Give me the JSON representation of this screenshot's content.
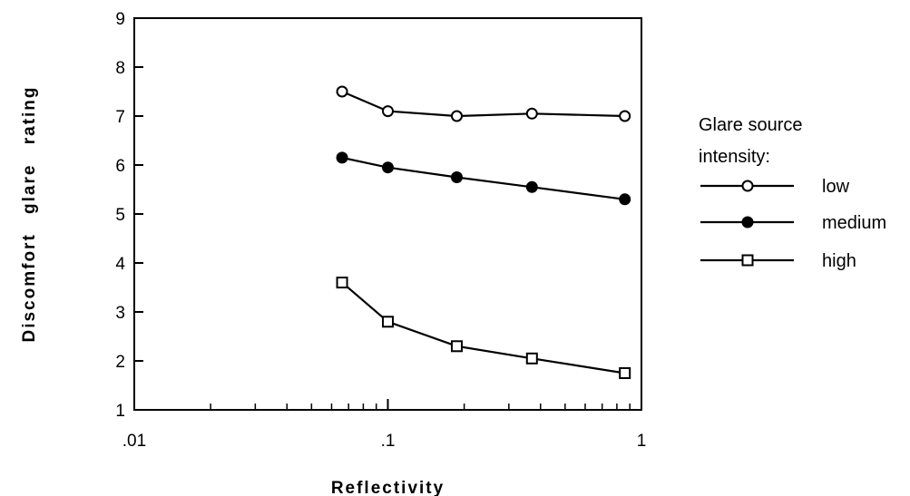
{
  "chart_data": {
    "type": "line",
    "xlabel": "Reflectivity",
    "ylabel": "Discomfort glare rating",
    "x_scale": "log",
    "xlim": [
      0.01,
      1
    ],
    "ylim": [
      1,
      9
    ],
    "x_ticks": [
      ".01",
      ".1",
      "1"
    ],
    "y_ticks": [
      "1",
      "2",
      "3",
      "4",
      "5",
      "6",
      "7",
      "8",
      "9"
    ],
    "legend_title": "Glare source intensity:",
    "legend_position": "right",
    "grid": false,
    "x": [
      0.066,
      0.1,
      0.187,
      0.37,
      0.86
    ],
    "series": [
      {
        "name": "low",
        "marker": "open-circle",
        "values": [
          7.5,
          7.1,
          7.0,
          7.05,
          7.0
        ]
      },
      {
        "name": "medium",
        "marker": "filled-circle",
        "values": [
          6.15,
          5.95,
          5.75,
          5.55,
          5.3
        ]
      },
      {
        "name": "high",
        "marker": "open-square",
        "values": [
          3.6,
          2.8,
          2.3,
          2.05,
          1.75
        ]
      }
    ]
  }
}
